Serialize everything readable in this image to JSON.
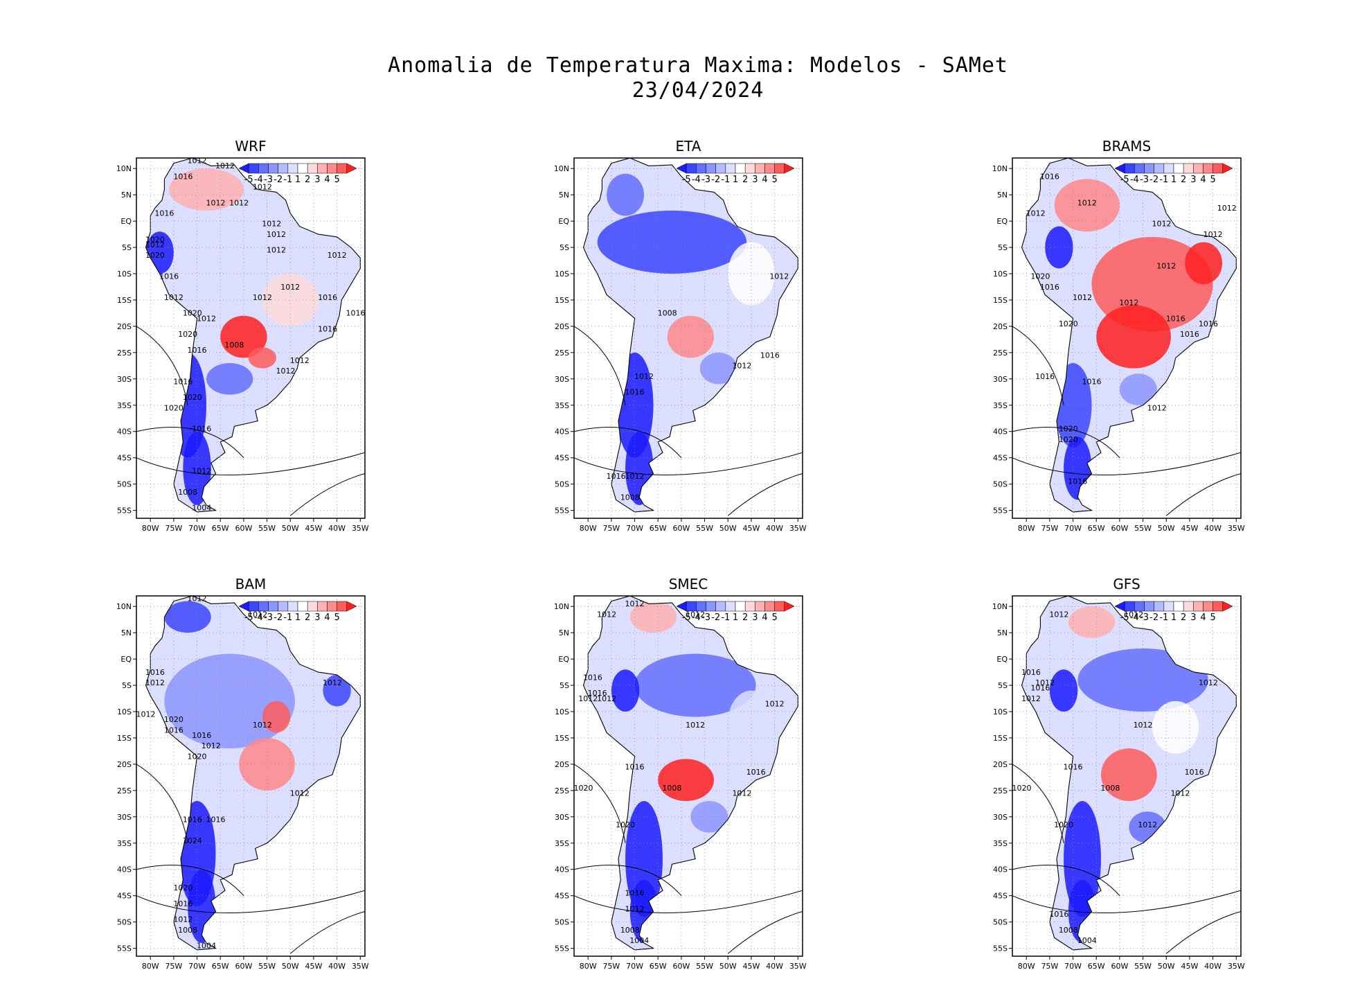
{
  "figure": {
    "title_line1": "Anomalia de Temperatura Maxima: Modelos - SAMet",
    "title_line2": "23/04/2024"
  },
  "axes": {
    "lat_labels": [
      "10N",
      "5N",
      "EQ",
      "5S",
      "10S",
      "15S",
      "20S",
      "25S",
      "30S",
      "35S",
      "40S",
      "45S",
      "50S",
      "55S"
    ],
    "lon_labels": [
      "80W",
      "75W",
      "70W",
      "65W",
      "60W",
      "55W",
      "50W",
      "45W",
      "40W",
      "35W"
    ],
    "lat_values": [
      10,
      5,
      0,
      -5,
      -10,
      -15,
      -20,
      -25,
      -30,
      -35,
      -40,
      -45,
      -50,
      -55
    ],
    "lon_values": [
      -80,
      -75,
      -70,
      -65,
      -60,
      -55,
      -50,
      -45,
      -40,
      -35
    ],
    "lat_range": [
      -56.5,
      12
    ],
    "lon_range": [
      -83,
      -34
    ],
    "grid": "dotted"
  },
  "colorbar": {
    "labels": [
      "-5",
      "-4",
      "-3",
      "-2",
      "-1",
      "1",
      "2",
      "3",
      "4",
      "5"
    ],
    "colors": [
      "#1a1aff",
      "#3a45ff",
      "#6470ff",
      "#8c96ff",
      "#b4bcff",
      "#dcdfff",
      "#ffffff",
      "#ffdada",
      "#ffb2b2",
      "#ff8a8a",
      "#ff5c5c",
      "#ff2020"
    ],
    "placement": "top-right"
  },
  "panels": [
    {
      "name": "WRF",
      "isobars": [
        {
          "label": "1012",
          "lon": -70,
          "lat": 11
        },
        {
          "label": "1012",
          "lon": -64,
          "lat": 10
        },
        {
          "label": "1016",
          "lon": -73,
          "lat": 8
        },
        {
          "label": "1012",
          "lon": -56,
          "lat": 6
        },
        {
          "label": "1012",
          "lon": -66,
          "lat": 3
        },
        {
          "label": "1012",
          "lon": -61,
          "lat": 3
        },
        {
          "label": "1016",
          "lon": -77,
          "lat": 1
        },
        {
          "label": "1012",
          "lon": -54,
          "lat": -1
        },
        {
          "label": "1012",
          "lon": -53,
          "lat": -3
        },
        {
          "label": "1020",
          "lon": -79,
          "lat": -4
        },
        {
          "label": "1012",
          "lon": -79,
          "lat": -5
        },
        {
          "label": "1020",
          "lon": -79,
          "lat": -7
        },
        {
          "label": "1012",
          "lon": -53,
          "lat": -6
        },
        {
          "label": "1012",
          "lon": -40,
          "lat": -7
        },
        {
          "label": "1016",
          "lon": -76,
          "lat": -11
        },
        {
          "label": "1012",
          "lon": -50,
          "lat": -13
        },
        {
          "label": "1012",
          "lon": -56,
          "lat": -15
        },
        {
          "label": "1012",
          "lon": -75,
          "lat": -15
        },
        {
          "label": "1016",
          "lon": -42,
          "lat": -15
        },
        {
          "label": "1020",
          "lon": -71,
          "lat": -18
        },
        {
          "label": "1012",
          "lon": -68,
          "lat": -19
        },
        {
          "label": "1016",
          "lon": -36,
          "lat": -18
        },
        {
          "label": "1016",
          "lon": -42,
          "lat": -21
        },
        {
          "label": "1020",
          "lon": -72,
          "lat": -22
        },
        {
          "label": "1008",
          "lon": -62,
          "lat": -24
        },
        {
          "label": "1016",
          "lon": -70,
          "lat": -25
        },
        {
          "label": "1012",
          "lon": -48,
          "lat": -27
        },
        {
          "label": "1012",
          "lon": -51,
          "lat": -29
        },
        {
          "label": "1016",
          "lon": -73,
          "lat": -31
        },
        {
          "label": "1020",
          "lon": -71,
          "lat": -34
        },
        {
          "label": "1020",
          "lon": -75,
          "lat": -36
        },
        {
          "label": "1016",
          "lon": -69,
          "lat": -40
        },
        {
          "label": "1012",
          "lon": -69,
          "lat": -48
        },
        {
          "label": "1008",
          "lon": -72,
          "lat": -52
        },
        {
          "label": "1004",
          "lon": -69,
          "lat": -55
        }
      ]
    },
    {
      "name": "ETA",
      "isobars": [
        {
          "label": "1012",
          "lon": -39,
          "lat": -11
        },
        {
          "label": "1008",
          "lon": -63,
          "lat": -18
        },
        {
          "label": "1016",
          "lon": -41,
          "lat": -26
        },
        {
          "label": "1012",
          "lon": -47,
          "lat": -28
        },
        {
          "label": "1012",
          "lon": -68,
          "lat": -30
        },
        {
          "label": "1016",
          "lon": -70,
          "lat": -33
        },
        {
          "label": "1016",
          "lon": -74,
          "lat": -49
        },
        {
          "label": "1012",
          "lon": -70,
          "lat": -49
        },
        {
          "label": "1008",
          "lon": -71,
          "lat": -53
        }
      ]
    },
    {
      "name": "BRAMS",
      "isobars": [
        {
          "label": "1016",
          "lon": -75,
          "lat": 8
        },
        {
          "label": "1012",
          "lon": -67,
          "lat": 3
        },
        {
          "label": "1012",
          "lon": -37,
          "lat": 2
        },
        {
          "label": "1012",
          "lon": -78,
          "lat": 1
        },
        {
          "label": "1012",
          "lon": -51,
          "lat": -1
        },
        {
          "label": "1012",
          "lon": -40,
          "lat": -3
        },
        {
          "label": "1012",
          "lon": -50,
          "lat": -9
        },
        {
          "label": "1020",
          "lon": -77,
          "lat": -11
        },
        {
          "label": "1016",
          "lon": -75,
          "lat": -13
        },
        {
          "label": "1012",
          "lon": -68,
          "lat": -15
        },
        {
          "label": "1012",
          "lon": -58,
          "lat": -16
        },
        {
          "label": "1020",
          "lon": -71,
          "lat": -20
        },
        {
          "label": "1016",
          "lon": -48,
          "lat": -19
        },
        {
          "label": "1016",
          "lon": -41,
          "lat": -20
        },
        {
          "label": "1016",
          "lon": -45,
          "lat": -22
        },
        {
          "label": "1016",
          "lon": -76,
          "lat": -30
        },
        {
          "label": "1016",
          "lon": -66,
          "lat": -31
        },
        {
          "label": "1012",
          "lon": -52,
          "lat": -36
        },
        {
          "label": "1020",
          "lon": -71,
          "lat": -40
        },
        {
          "label": "1020",
          "lon": -71,
          "lat": -42
        },
        {
          "label": "1016",
          "lon": -69,
          "lat": -50
        }
      ]
    },
    {
      "name": "BAM",
      "isobars": [
        {
          "label": "1012",
          "lon": -70,
          "lat": 11
        },
        {
          "label": "1012",
          "lon": -57,
          "lat": 8
        },
        {
          "label": "1016",
          "lon": -79,
          "lat": -3
        },
        {
          "label": "1012",
          "lon": -79,
          "lat": -5
        },
        {
          "label": "1012",
          "lon": -41,
          "lat": -5
        },
        {
          "label": "1012",
          "lon": -81,
          "lat": -11
        },
        {
          "label": "1020",
          "lon": -75,
          "lat": -12
        },
        {
          "label": "1016",
          "lon": -75,
          "lat": -14
        },
        {
          "label": "1016",
          "lon": -69,
          "lat": -15
        },
        {
          "label": "1012",
          "lon": -56,
          "lat": -13
        },
        {
          "label": "1012",
          "lon": -67,
          "lat": -17
        },
        {
          "label": "1020",
          "lon": -70,
          "lat": -19
        },
        {
          "label": "1012",
          "lon": -48,
          "lat": -26
        },
        {
          "label": "1016",
          "lon": -71,
          "lat": -31
        },
        {
          "label": "1016",
          "lon": -66,
          "lat": -31
        },
        {
          "label": "1024",
          "lon": -71,
          "lat": -35
        },
        {
          "label": "1020",
          "lon": -73,
          "lat": -44
        },
        {
          "label": "1016",
          "lon": -73,
          "lat": -47
        },
        {
          "label": "1012",
          "lon": -73,
          "lat": -50
        },
        {
          "label": "1008",
          "lon": -72,
          "lat": -52
        },
        {
          "label": "1004",
          "lon": -68,
          "lat": -55
        }
      ]
    },
    {
      "name": "SMEC",
      "isobars": [
        {
          "label": "1012",
          "lon": -70,
          "lat": 10
        },
        {
          "label": "1012",
          "lon": -76,
          "lat": 8
        },
        {
          "label": "1012",
          "lon": -57,
          "lat": 8
        },
        {
          "label": "1016",
          "lon": -79,
          "lat": -4
        },
        {
          "label": "1016",
          "lon": -78,
          "lat": -7
        },
        {
          "label": "1012",
          "lon": -80,
          "lat": -8
        },
        {
          "label": "1012",
          "lon": -76,
          "lat": -8
        },
        {
          "label": "1012",
          "lon": -40,
          "lat": -9
        },
        {
          "label": "1012",
          "lon": -57,
          "lat": -13
        },
        {
          "label": "1016",
          "lon": -70,
          "lat": -21
        },
        {
          "label": "1016",
          "lon": -44,
          "lat": -22
        },
        {
          "label": "1020",
          "lon": -81,
          "lat": -25
        },
        {
          "label": "1008",
          "lon": -62,
          "lat": -25
        },
        {
          "label": "1012",
          "lon": -47,
          "lat": -26
        },
        {
          "label": "1020",
          "lon": -72,
          "lat": -32
        },
        {
          "label": "1016",
          "lon": -70,
          "lat": -45
        },
        {
          "label": "1012",
          "lon": -70,
          "lat": -48
        },
        {
          "label": "1008",
          "lon": -71,
          "lat": -52
        },
        {
          "label": "1004",
          "lon": -69,
          "lat": -54
        }
      ]
    },
    {
      "name": "GFS",
      "isobars": [
        {
          "label": "1012",
          "lon": -73,
          "lat": 8
        },
        {
          "label": "1012",
          "lon": -57,
          "lat": 8
        },
        {
          "label": "1016",
          "lon": -79,
          "lat": -3
        },
        {
          "label": "1012",
          "lon": -76,
          "lat": -5
        },
        {
          "label": "1012",
          "lon": -41,
          "lat": -5
        },
        {
          "label": "1016",
          "lon": -77,
          "lat": -6
        },
        {
          "label": "1012",
          "lon": -79,
          "lat": -8
        },
        {
          "label": "1012",
          "lon": -55,
          "lat": -13
        },
        {
          "label": "1016",
          "lon": -70,
          "lat": -21
        },
        {
          "label": "1016",
          "lon": -44,
          "lat": -22
        },
        {
          "label": "1020",
          "lon": -81,
          "lat": -25
        },
        {
          "label": "1008",
          "lon": -62,
          "lat": -25
        },
        {
          "label": "1012",
          "lon": -47,
          "lat": -26
        },
        {
          "label": "1020",
          "lon": -72,
          "lat": -32
        },
        {
          "label": "1012",
          "lon": -54,
          "lat": -32
        },
        {
          "label": "1016",
          "lon": -73,
          "lat": -49
        },
        {
          "label": "1008",
          "lon": -71,
          "lat": -52
        },
        {
          "label": "1004",
          "lon": -67,
          "lat": -54
        }
      ]
    }
  ]
}
